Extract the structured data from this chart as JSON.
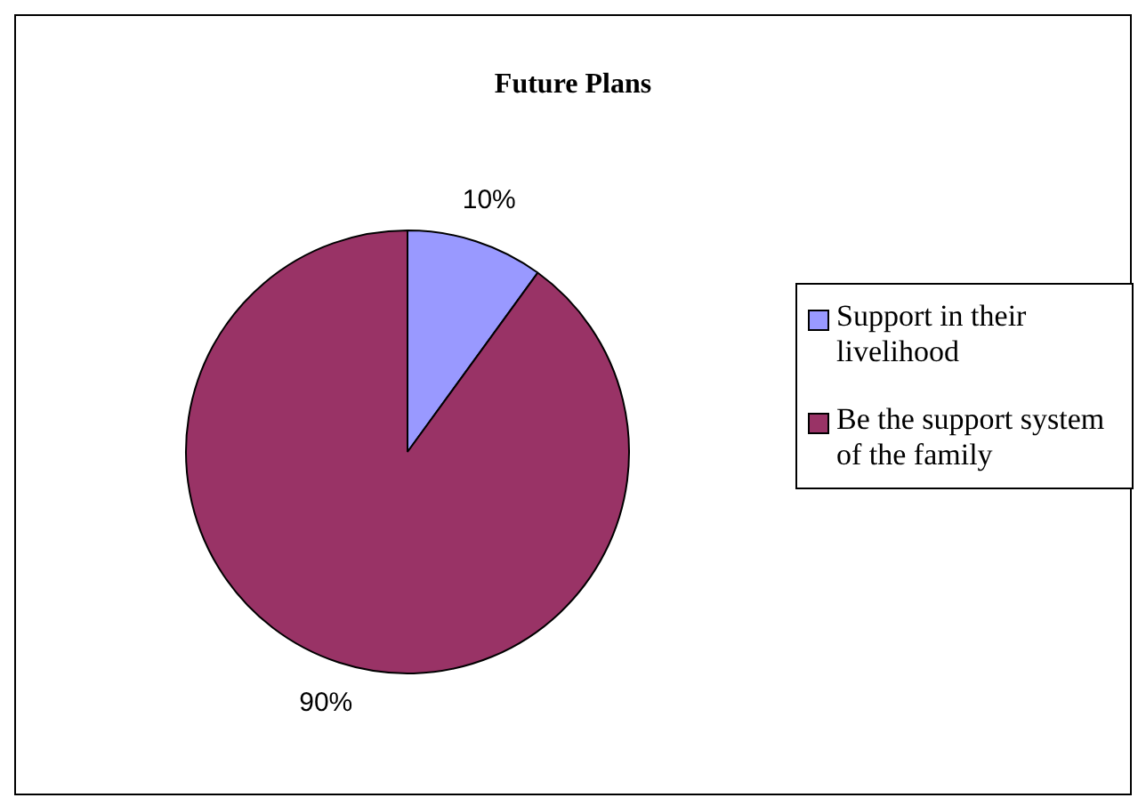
{
  "chart_data": {
    "type": "pie",
    "title": "Future Plans",
    "categories": [
      "Support in their livelihood",
      "Be the support system of the family"
    ],
    "values": [
      10,
      90
    ],
    "colors": [
      "#9999ff",
      "#993366"
    ],
    "value_labels": [
      "10%",
      "90%"
    ],
    "legend": "right"
  }
}
